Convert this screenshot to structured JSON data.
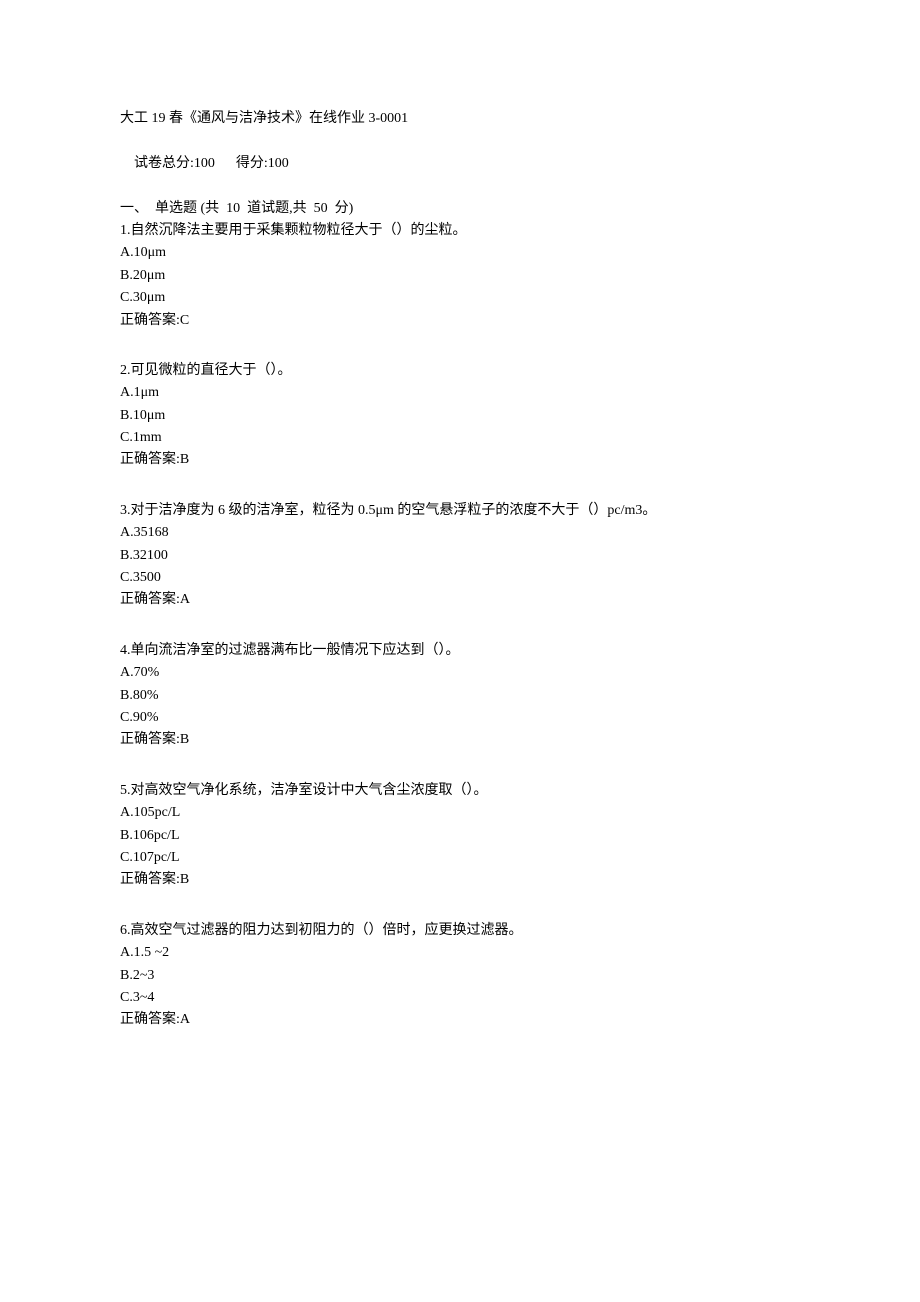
{
  "header": {
    "title": "大工 19 春《通风与洁净技术》在线作业 3-0001",
    "total_label": "试卷总分:",
    "total_value": "100",
    "score_label": "得分:",
    "score_value": "100",
    "section_label": "一、  单选题 (共  10  道试题,共  50  分)"
  },
  "questions": [
    {
      "stem": "1.自然沉降法主要用于采集颗粒物粒径大于（）的尘粒。",
      "options": [
        "A.10μm",
        "B.20μm",
        "C.30μm"
      ],
      "answer": "正确答案:C"
    },
    {
      "stem": "2.可见微粒的直径大于（）。",
      "options": [
        "A.1μm",
        "B.10μm",
        "C.1mm"
      ],
      "answer": "正确答案:B"
    },
    {
      "stem": "3.对于洁净度为 6 级的洁净室，粒径为 0.5μm 的空气悬浮粒子的浓度不大于（）pc/m3。",
      "options": [
        "A.35168",
        "B.32100",
        "C.3500"
      ],
      "answer": "正确答案:A"
    },
    {
      "stem": "4.单向流洁净室的过滤器满布比一般情况下应达到（）。",
      "options": [
        "A.70%",
        "B.80%",
        "C.90%"
      ],
      "answer": "正确答案:B"
    },
    {
      "stem": "5.对高效空气净化系统，洁净室设计中大气含尘浓度取（）。",
      "options": [
        "A.105pc/L",
        "B.106pc/L",
        "C.107pc/L"
      ],
      "answer": "正确答案:B"
    },
    {
      "stem": "6.高效空气过滤器的阻力达到初阻力的（）倍时，应更换过滤器。",
      "options": [
        "A.1.5 ~2",
        "B.2~3",
        "C.3~4"
      ],
      "answer": "正确答案:A"
    }
  ]
}
